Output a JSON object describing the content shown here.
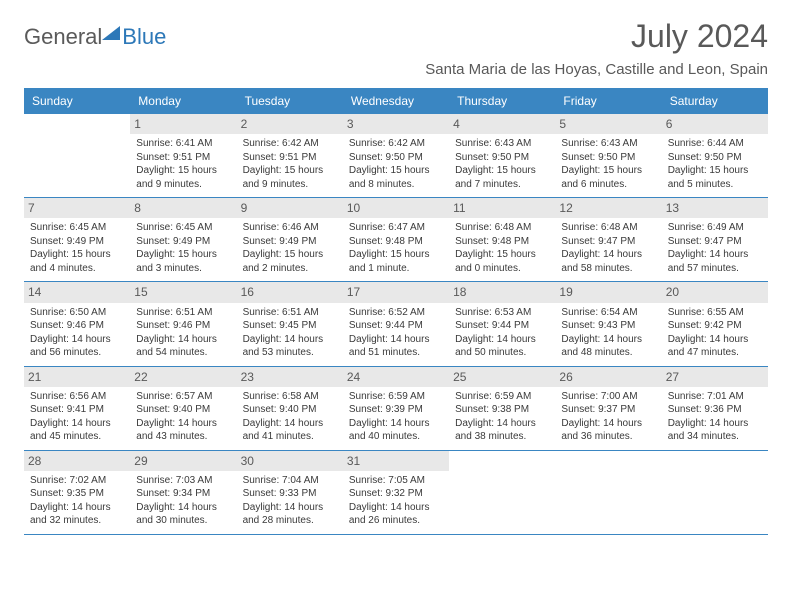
{
  "logo": {
    "part1": "General",
    "part2": "Blue"
  },
  "title": "July 2024",
  "location": "Santa Maria de las Hoyas, Castille and Leon, Spain",
  "colors": {
    "header_bg": "#3a86c2",
    "header_text": "#ffffff",
    "daynum_bg": "#e8e8e8",
    "body_text": "#3a3a3a",
    "title_text": "#595959",
    "border": "#3a86c2"
  },
  "weekdays": [
    "Sunday",
    "Monday",
    "Tuesday",
    "Wednesday",
    "Thursday",
    "Friday",
    "Saturday"
  ],
  "weeks": [
    [
      {
        "n": "",
        "sr": "",
        "ss": "",
        "d1": "",
        "d2": ""
      },
      {
        "n": "1",
        "sr": "Sunrise: 6:41 AM",
        "ss": "Sunset: 9:51 PM",
        "d1": "Daylight: 15 hours",
        "d2": "and 9 minutes."
      },
      {
        "n": "2",
        "sr": "Sunrise: 6:42 AM",
        "ss": "Sunset: 9:51 PM",
        "d1": "Daylight: 15 hours",
        "d2": "and 9 minutes."
      },
      {
        "n": "3",
        "sr": "Sunrise: 6:42 AM",
        "ss": "Sunset: 9:50 PM",
        "d1": "Daylight: 15 hours",
        "d2": "and 8 minutes."
      },
      {
        "n": "4",
        "sr": "Sunrise: 6:43 AM",
        "ss": "Sunset: 9:50 PM",
        "d1": "Daylight: 15 hours",
        "d2": "and 7 minutes."
      },
      {
        "n": "5",
        "sr": "Sunrise: 6:43 AM",
        "ss": "Sunset: 9:50 PM",
        "d1": "Daylight: 15 hours",
        "d2": "and 6 minutes."
      },
      {
        "n": "6",
        "sr": "Sunrise: 6:44 AM",
        "ss": "Sunset: 9:50 PM",
        "d1": "Daylight: 15 hours",
        "d2": "and 5 minutes."
      }
    ],
    [
      {
        "n": "7",
        "sr": "Sunrise: 6:45 AM",
        "ss": "Sunset: 9:49 PM",
        "d1": "Daylight: 15 hours",
        "d2": "and 4 minutes."
      },
      {
        "n": "8",
        "sr": "Sunrise: 6:45 AM",
        "ss": "Sunset: 9:49 PM",
        "d1": "Daylight: 15 hours",
        "d2": "and 3 minutes."
      },
      {
        "n": "9",
        "sr": "Sunrise: 6:46 AM",
        "ss": "Sunset: 9:49 PM",
        "d1": "Daylight: 15 hours",
        "d2": "and 2 minutes."
      },
      {
        "n": "10",
        "sr": "Sunrise: 6:47 AM",
        "ss": "Sunset: 9:48 PM",
        "d1": "Daylight: 15 hours",
        "d2": "and 1 minute."
      },
      {
        "n": "11",
        "sr": "Sunrise: 6:48 AM",
        "ss": "Sunset: 9:48 PM",
        "d1": "Daylight: 15 hours",
        "d2": "and 0 minutes."
      },
      {
        "n": "12",
        "sr": "Sunrise: 6:48 AM",
        "ss": "Sunset: 9:47 PM",
        "d1": "Daylight: 14 hours",
        "d2": "and 58 minutes."
      },
      {
        "n": "13",
        "sr": "Sunrise: 6:49 AM",
        "ss": "Sunset: 9:47 PM",
        "d1": "Daylight: 14 hours",
        "d2": "and 57 minutes."
      }
    ],
    [
      {
        "n": "14",
        "sr": "Sunrise: 6:50 AM",
        "ss": "Sunset: 9:46 PM",
        "d1": "Daylight: 14 hours",
        "d2": "and 56 minutes."
      },
      {
        "n": "15",
        "sr": "Sunrise: 6:51 AM",
        "ss": "Sunset: 9:46 PM",
        "d1": "Daylight: 14 hours",
        "d2": "and 54 minutes."
      },
      {
        "n": "16",
        "sr": "Sunrise: 6:51 AM",
        "ss": "Sunset: 9:45 PM",
        "d1": "Daylight: 14 hours",
        "d2": "and 53 minutes."
      },
      {
        "n": "17",
        "sr": "Sunrise: 6:52 AM",
        "ss": "Sunset: 9:44 PM",
        "d1": "Daylight: 14 hours",
        "d2": "and 51 minutes."
      },
      {
        "n": "18",
        "sr": "Sunrise: 6:53 AM",
        "ss": "Sunset: 9:44 PM",
        "d1": "Daylight: 14 hours",
        "d2": "and 50 minutes."
      },
      {
        "n": "19",
        "sr": "Sunrise: 6:54 AM",
        "ss": "Sunset: 9:43 PM",
        "d1": "Daylight: 14 hours",
        "d2": "and 48 minutes."
      },
      {
        "n": "20",
        "sr": "Sunrise: 6:55 AM",
        "ss": "Sunset: 9:42 PM",
        "d1": "Daylight: 14 hours",
        "d2": "and 47 minutes."
      }
    ],
    [
      {
        "n": "21",
        "sr": "Sunrise: 6:56 AM",
        "ss": "Sunset: 9:41 PM",
        "d1": "Daylight: 14 hours",
        "d2": "and 45 minutes."
      },
      {
        "n": "22",
        "sr": "Sunrise: 6:57 AM",
        "ss": "Sunset: 9:40 PM",
        "d1": "Daylight: 14 hours",
        "d2": "and 43 minutes."
      },
      {
        "n": "23",
        "sr": "Sunrise: 6:58 AM",
        "ss": "Sunset: 9:40 PM",
        "d1": "Daylight: 14 hours",
        "d2": "and 41 minutes."
      },
      {
        "n": "24",
        "sr": "Sunrise: 6:59 AM",
        "ss": "Sunset: 9:39 PM",
        "d1": "Daylight: 14 hours",
        "d2": "and 40 minutes."
      },
      {
        "n": "25",
        "sr": "Sunrise: 6:59 AM",
        "ss": "Sunset: 9:38 PM",
        "d1": "Daylight: 14 hours",
        "d2": "and 38 minutes."
      },
      {
        "n": "26",
        "sr": "Sunrise: 7:00 AM",
        "ss": "Sunset: 9:37 PM",
        "d1": "Daylight: 14 hours",
        "d2": "and 36 minutes."
      },
      {
        "n": "27",
        "sr": "Sunrise: 7:01 AM",
        "ss": "Sunset: 9:36 PM",
        "d1": "Daylight: 14 hours",
        "d2": "and 34 minutes."
      }
    ],
    [
      {
        "n": "28",
        "sr": "Sunrise: 7:02 AM",
        "ss": "Sunset: 9:35 PM",
        "d1": "Daylight: 14 hours",
        "d2": "and 32 minutes."
      },
      {
        "n": "29",
        "sr": "Sunrise: 7:03 AM",
        "ss": "Sunset: 9:34 PM",
        "d1": "Daylight: 14 hours",
        "d2": "and 30 minutes."
      },
      {
        "n": "30",
        "sr": "Sunrise: 7:04 AM",
        "ss": "Sunset: 9:33 PM",
        "d1": "Daylight: 14 hours",
        "d2": "and 28 minutes."
      },
      {
        "n": "31",
        "sr": "Sunrise: 7:05 AM",
        "ss": "Sunset: 9:32 PM",
        "d1": "Daylight: 14 hours",
        "d2": "and 26 minutes."
      },
      {
        "n": "",
        "sr": "",
        "ss": "",
        "d1": "",
        "d2": ""
      },
      {
        "n": "",
        "sr": "",
        "ss": "",
        "d1": "",
        "d2": ""
      },
      {
        "n": "",
        "sr": "",
        "ss": "",
        "d1": "",
        "d2": ""
      }
    ]
  ]
}
